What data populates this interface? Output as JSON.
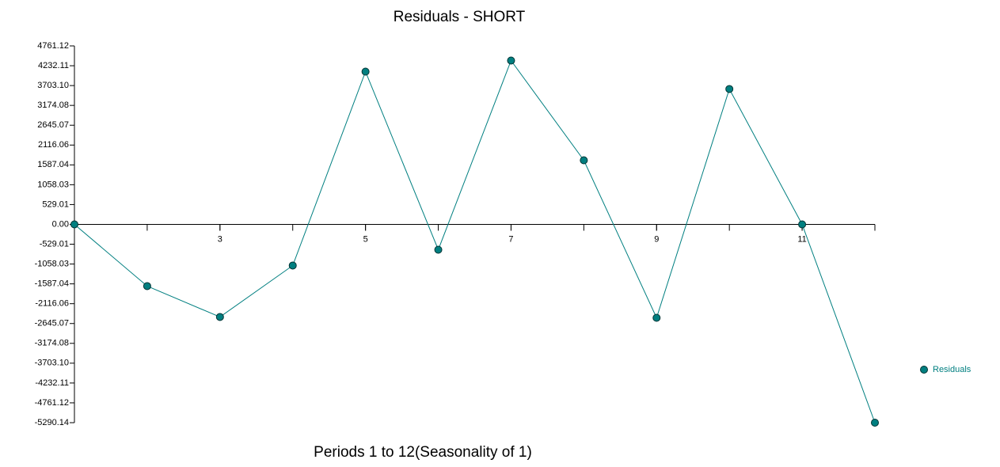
{
  "chart_data": {
    "type": "line",
    "title": "Residuals - SHORT",
    "x_label": "Periods 1 to 12(Seasonality of 1)",
    "x": [
      1,
      2,
      3,
      4,
      5,
      6,
      7,
      8,
      9,
      10,
      11,
      12
    ],
    "series": [
      {
        "name": "Residuals",
        "color": "#007f80",
        "values": [
          0,
          -1647,
          -2470,
          -1098,
          4075,
          -676,
          4371,
          1710,
          -2492,
          3611,
          0,
          -5290.14
        ]
      }
    ],
    "xlim": [
      1,
      12
    ],
    "xticks": [
      3,
      5,
      7,
      9,
      11
    ],
    "ylim": [
      -5290.14,
      4761.12
    ],
    "yticks": [
      4761.12,
      4232.11,
      {
        "value": 3703.1,
        "label": "3703.10"
      },
      3174.08,
      2645.07,
      2116.06,
      1587.04,
      1058.03,
      529.01,
      {
        "value": 0,
        "label": "0.00"
      },
      -529.01,
      -1058.03,
      -1587.04,
      -2116.06,
      -2645.07,
      -3174.08,
      {
        "value": -3703.1,
        "label": "-3703.10"
      },
      -4232.11,
      -4761.12,
      -5290.14
    ],
    "legend": "right"
  }
}
